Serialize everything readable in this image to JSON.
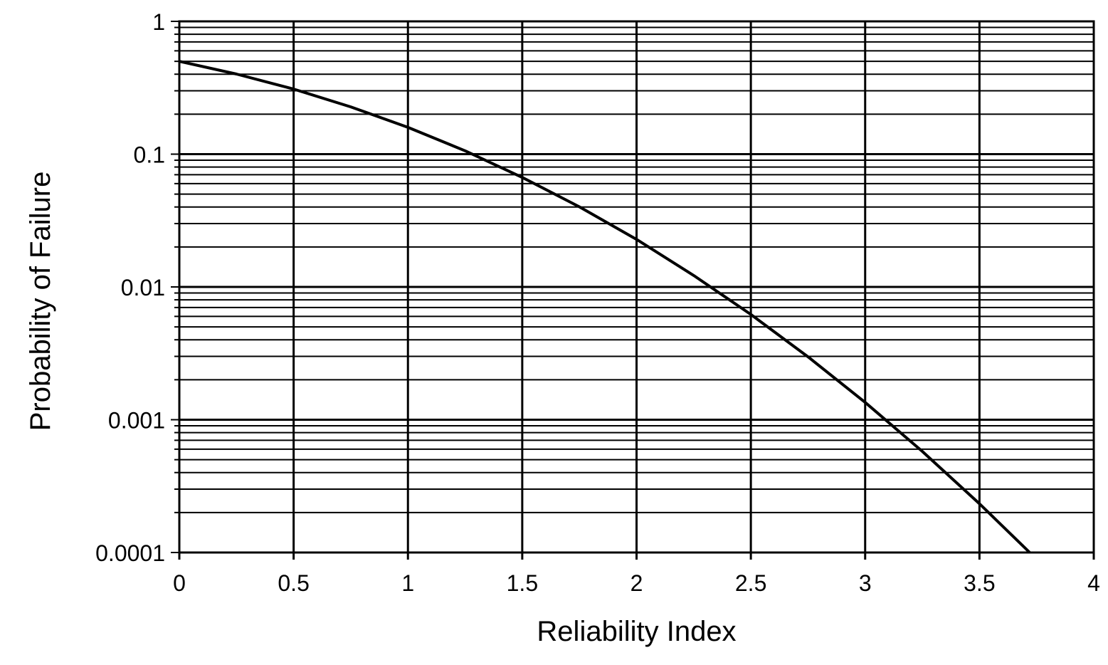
{
  "chart_data": {
    "type": "line",
    "title": "",
    "xlabel": "Reliability Index",
    "ylabel": "Probability of Failure",
    "xlim": [
      0,
      4
    ],
    "ylim": [
      0.0001,
      1
    ],
    "yscale": "log",
    "grid": true,
    "x_ticks": [
      "0",
      "0.5",
      "1",
      "1.5",
      "2",
      "2.5",
      "3",
      "3.5",
      "4"
    ],
    "y_ticks": [
      "0.0001",
      "0.001",
      "0.01",
      "0.1",
      "1"
    ],
    "series": [
      {
        "x": [
          0,
          0.25,
          0.5,
          0.75,
          1.0,
          1.25,
          1.5,
          1.75,
          2.0,
          2.25,
          2.5,
          2.75,
          3.0,
          3.25,
          3.5,
          3.72
        ],
        "y": [
          0.5,
          0.401,
          0.309,
          0.227,
          0.159,
          0.106,
          0.0668,
          0.0401,
          0.0228,
          0.0122,
          0.00621,
          0.00298,
          0.00135,
          0.000577,
          0.000233,
          0.0001
        ]
      }
    ],
    "colors": {
      "line": "#000000",
      "grid": "#000000",
      "background": "#ffffff"
    }
  }
}
